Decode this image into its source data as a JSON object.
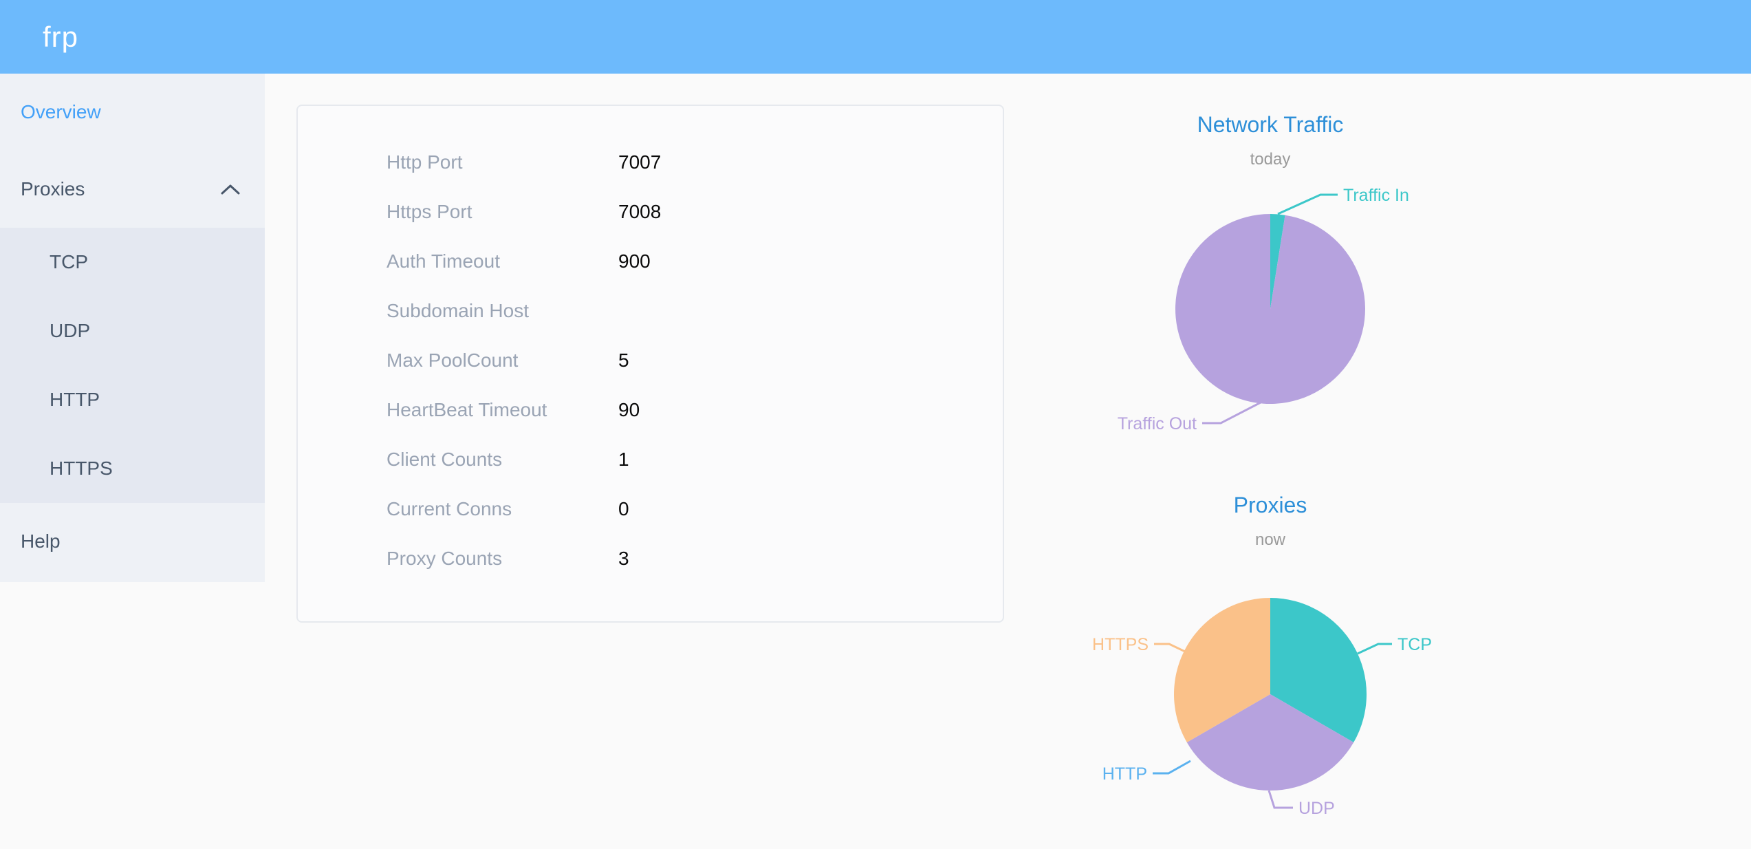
{
  "header": {
    "logo": "frp",
    "background": "#6dbafc"
  },
  "sidebar": {
    "items": [
      {
        "label": "Overview",
        "active": true
      },
      {
        "label": "Proxies",
        "expanded": true
      },
      {
        "label": "Help"
      }
    ],
    "proxies_children": [
      "TCP",
      "UDP",
      "HTTP",
      "HTTPS"
    ]
  },
  "overview_card": {
    "rows": [
      {
        "label": "Http Port",
        "value": "7007"
      },
      {
        "label": "Https Port",
        "value": "7008"
      },
      {
        "label": "Auth Timeout",
        "value": "900"
      },
      {
        "label": "Subdomain Host",
        "value": ""
      },
      {
        "label": "Max PoolCount",
        "value": "5"
      },
      {
        "label": "HeartBeat Timeout",
        "value": "90"
      },
      {
        "label": "Client Counts",
        "value": "1"
      },
      {
        "label": "Current Conns",
        "value": "0"
      },
      {
        "label": "Proxy Counts",
        "value": "3"
      }
    ]
  },
  "chart_data": [
    {
      "type": "pie",
      "title": "Network Traffic",
      "subtitle": "today",
      "start_angle_deg": 0,
      "direction": "clockwise",
      "legend_position": "callout-labels",
      "series": [
        {
          "name": "Traffic In",
          "value": 2.5,
          "color": "#3cc7c9"
        },
        {
          "name": "Traffic Out",
          "value": 97.5,
          "color": "#b6a2de"
        }
      ]
    },
    {
      "type": "pie",
      "title": "Proxies",
      "subtitle": "now",
      "start_angle_deg": 0,
      "direction": "clockwise",
      "legend_position": "callout-labels",
      "series": [
        {
          "name": "TCP",
          "value": 1,
          "color": "#3cc7c9"
        },
        {
          "name": "UDP",
          "value": 1,
          "color": "#b6a2de"
        },
        {
          "name": "HTTP",
          "value": 0,
          "color": "#5ab1ef"
        },
        {
          "name": "HTTPS",
          "value": 1,
          "color": "#fac189"
        }
      ]
    }
  ]
}
